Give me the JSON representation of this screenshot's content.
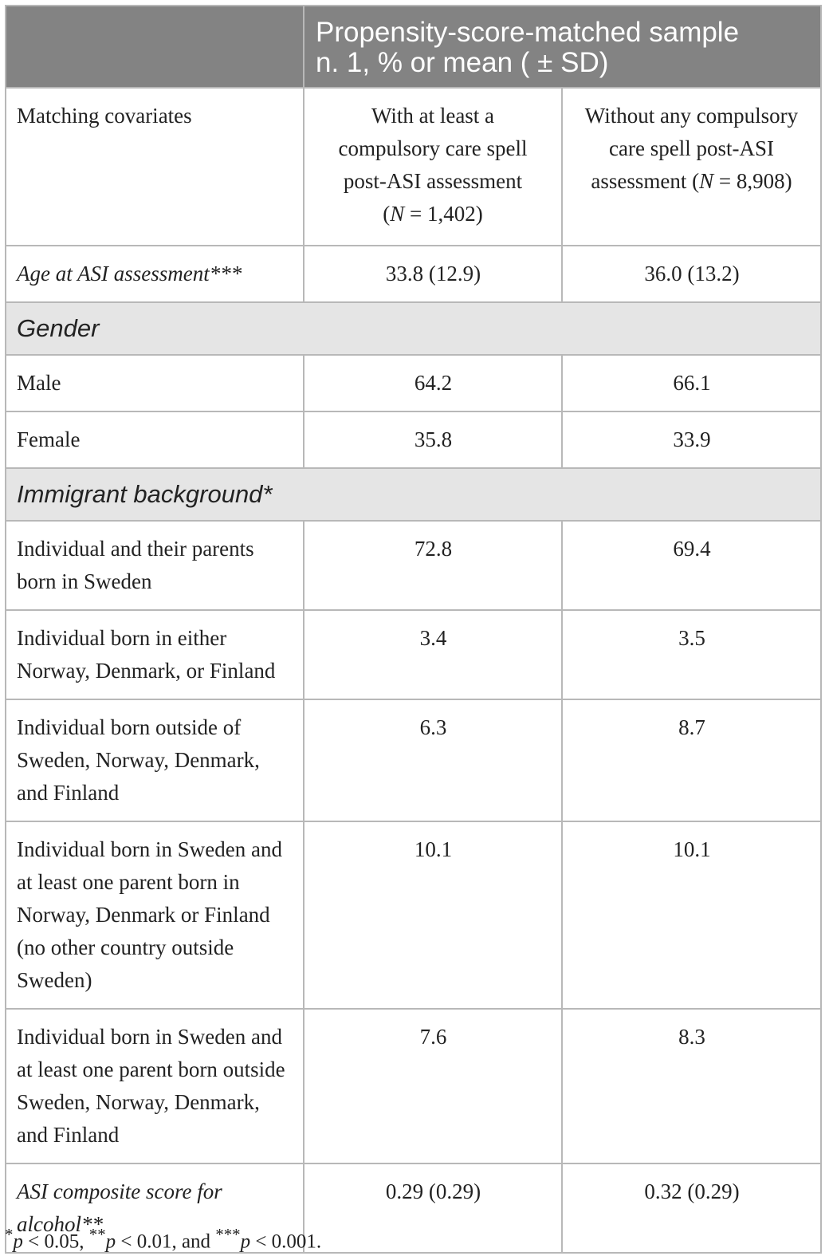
{
  "header": {
    "title_line1": "Propensity-score-matched sample",
    "title_line2": "n. 1, % or mean ( ± SD)"
  },
  "subheader": {
    "col1": "Matching covariates",
    "col2": "With at least a compulsory care spell post-ASI assessment (N = 1,402)",
    "col3": "Without any compulsory care spell post-ASI assessment (N = 8,908)"
  },
  "rows": [
    {
      "type": "data",
      "label": "Age at ASI assessment***",
      "italic": true,
      "v1": "33.8 (12.9)",
      "v2": "36.0 (13.2)"
    },
    {
      "type": "section",
      "label": "Gender"
    },
    {
      "type": "data",
      "label": "Male",
      "v1": "64.2",
      "v2": "66.1"
    },
    {
      "type": "data",
      "label": "Female",
      "v1": "35.8",
      "v2": "33.9"
    },
    {
      "type": "section",
      "label": "Immigrant background*"
    },
    {
      "type": "data",
      "label": "Individual and their parents born in Sweden",
      "v1": "72.8",
      "v2": "69.4"
    },
    {
      "type": "data",
      "label": "Individual born in either Norway, Denmark, or Finland",
      "v1": "3.4",
      "v2": "3.5"
    },
    {
      "type": "data",
      "label": "Individual born outside of Sweden, Norway, Denmark, and Finland",
      "v1": "6.3",
      "v2": "8.7"
    },
    {
      "type": "data",
      "label": "Individual born in Sweden and at least one parent born in Norway, Denmark or Finland (no other country outside Sweden)",
      "v1": "10.1",
      "v2": "10.1"
    },
    {
      "type": "data",
      "label": "Individual born in Sweden and at least one parent born outside Sweden, Norway, Denmark, and Finland",
      "v1": "7.6",
      "v2": "8.3"
    },
    {
      "type": "data",
      "label": "ASI composite score for alcohol**",
      "italic": true,
      "v1": "0.29 (0.29)",
      "v2": "0.32 (0.29)"
    }
  ],
  "footnote": "*p < 0.05, **p < 0.01, and ***p < 0.001."
}
